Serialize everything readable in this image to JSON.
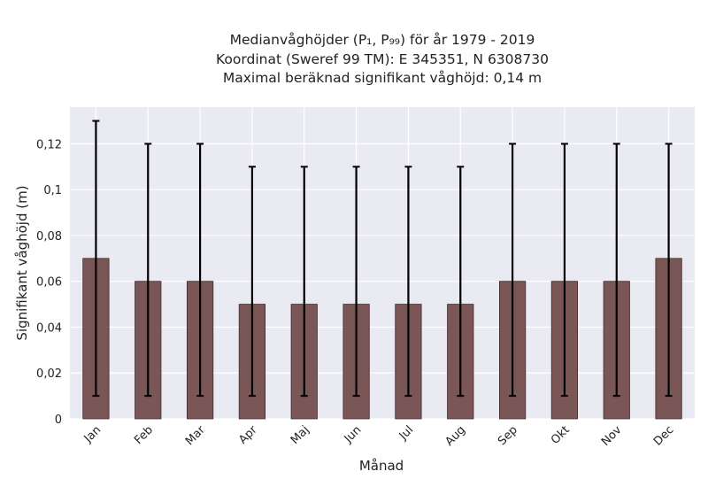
{
  "chart_data": {
    "type": "bar",
    "title_lines": [
      "Medianvåghöjder (P₁, P₉₉) för år 1979 - 2019",
      "Koordinat (Sweref 99 TM): E 345351, N 6308730",
      "Maximal beräknad signifikant våghöjd: 0,14 m"
    ],
    "xlabel": "Månad",
    "ylabel": "Signifikant våghöjd (m)",
    "categories": [
      "Jan",
      "Feb",
      "Mar",
      "Apr",
      "Maj",
      "Jun",
      "Jul",
      "Aug",
      "Sep",
      "Okt",
      "Nov",
      "Dec"
    ],
    "values": [
      0.07,
      0.06,
      0.06,
      0.05,
      0.05,
      0.05,
      0.05,
      0.05,
      0.06,
      0.06,
      0.06,
      0.07
    ],
    "error_low": [
      0.01,
      0.01,
      0.01,
      0.01,
      0.01,
      0.01,
      0.01,
      0.01,
      0.01,
      0.01,
      0.01,
      0.01
    ],
    "error_high": [
      0.13,
      0.12,
      0.12,
      0.11,
      0.11,
      0.11,
      0.11,
      0.11,
      0.12,
      0.12,
      0.12,
      0.12
    ],
    "ylim": [
      0,
      0.136
    ],
    "yticks": [
      0,
      0.02,
      0.04,
      0.06,
      0.08,
      0.1,
      0.12
    ],
    "ytick_labels": [
      "0",
      "0,02",
      "0,04",
      "0,06",
      "0,08",
      "0,1",
      "0,12"
    ],
    "grid": true,
    "colors": {
      "bar": "#7b5656",
      "bar_edge": "#3e2a2a",
      "plot_bg": "#eaeaf2",
      "grid": "#ffffff",
      "error": "#000000"
    }
  }
}
